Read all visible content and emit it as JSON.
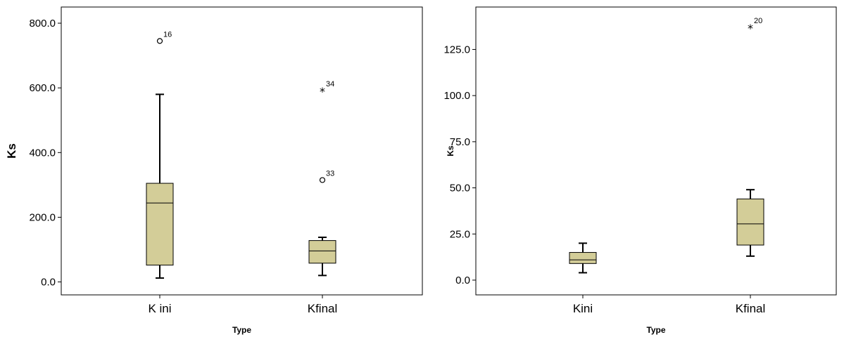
{
  "chart_data": [
    {
      "type": "box",
      "title": "",
      "xlabel": "Type",
      "ylabel": "Ks",
      "ylim": [
        -40,
        850
      ],
      "yticks": [
        0,
        200,
        400,
        600,
        800
      ],
      "ytick_labels": [
        "0.0",
        "200.0",
        "400.0",
        "600.0",
        "800.0"
      ],
      "box_fill": "#d3cd98",
      "categories": [
        "K ini",
        "Kfinal"
      ],
      "boxes": [
        {
          "category": "K ini",
          "whisker_low": 12,
          "q1": 52,
          "median": 244,
          "q3": 305,
          "whisker_high": 580,
          "outliers": [
            {
              "value": 745,
              "label": "16",
              "marker": "circle"
            }
          ]
        },
        {
          "category": "Kfinal",
          "whisker_low": 20,
          "q1": 58,
          "median": 96,
          "q3": 128,
          "whisker_high": 138,
          "outliers": [
            {
              "value": 592,
              "label": "34",
              "marker": "star"
            },
            {
              "value": 315,
              "label": "33",
              "marker": "circle"
            }
          ]
        }
      ]
    },
    {
      "type": "box",
      "title": "",
      "xlabel": "Type",
      "ylabel": "Ks",
      "ylim": [
        -8,
        148
      ],
      "yticks": [
        0,
        25,
        50,
        75,
        100,
        125
      ],
      "ytick_labels": [
        "0.0",
        "25.0",
        "50.0",
        "75.0",
        "100.0",
        "125.0"
      ],
      "box_fill": "#d3cd98",
      "categories": [
        "Kini",
        "Kfinal"
      ],
      "boxes": [
        {
          "category": "Kini",
          "whisker_low": 4,
          "q1": 9,
          "median": 11,
          "q3": 15,
          "whisker_high": 20,
          "outliers": []
        },
        {
          "category": "Kfinal",
          "whisker_low": 13,
          "q1": 19,
          "median": 30.5,
          "q3": 44,
          "whisker_high": 49,
          "outliers": [
            {
              "value": 137,
              "label": "20",
              "marker": "star"
            }
          ]
        }
      ]
    }
  ]
}
